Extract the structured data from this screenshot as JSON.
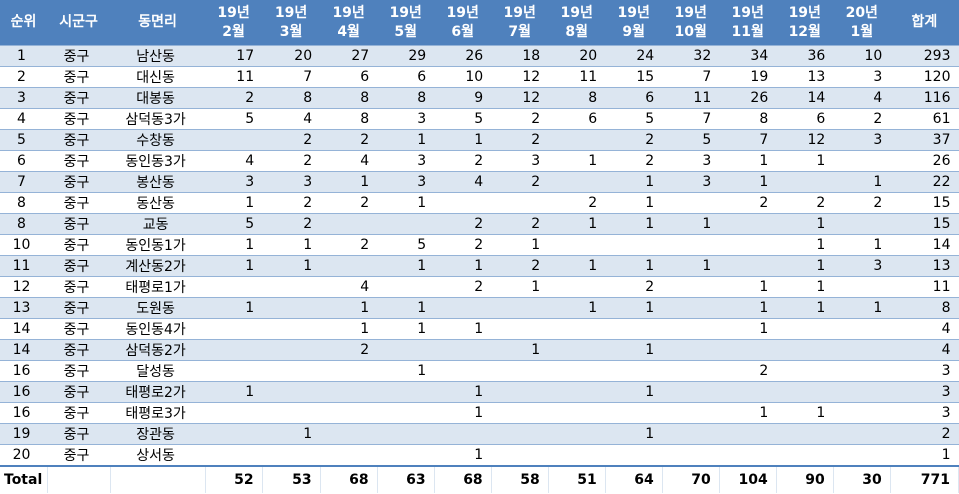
{
  "table": {
    "headers": [
      "순위",
      "시군구",
      "동면리",
      "19년\n2월",
      "19년\n3월",
      "19년\n4월",
      "19년\n5월",
      "19년\n6월",
      "19년\n7월",
      "19년\n8월",
      "19년\n9월",
      "19년\n10월",
      "19년\n11월",
      "19년\n12월",
      "20년\n1월",
      "합계"
    ],
    "rows": [
      [
        1,
        "중구",
        "남산동",
        17,
        20,
        27,
        29,
        26,
        18,
        20,
        24,
        32,
        34,
        36,
        10,
        293
      ],
      [
        2,
        "중구",
        "대신동",
        11,
        7,
        6,
        6,
        10,
        12,
        11,
        15,
        7,
        19,
        13,
        3,
        120
      ],
      [
        3,
        "중구",
        "대봉동",
        2,
        8,
        8,
        8,
        9,
        12,
        8,
        6,
        11,
        26,
        14,
        4,
        116
      ],
      [
        4,
        "중구",
        "삼덕동3가",
        5,
        4,
        8,
        3,
        5,
        2,
        6,
        5,
        7,
        8,
        6,
        2,
        61
      ],
      [
        5,
        "중구",
        "수창동",
        null,
        2,
        2,
        1,
        1,
        2,
        null,
        2,
        5,
        7,
        12,
        3,
        37
      ],
      [
        6,
        "중구",
        "동인동3가",
        4,
        2,
        4,
        3,
        2,
        3,
        1,
        2,
        3,
        1,
        1,
        null,
        26
      ],
      [
        7,
        "중구",
        "봉산동",
        3,
        3,
        1,
        3,
        4,
        2,
        null,
        1,
        3,
        1,
        null,
        1,
        22
      ],
      [
        8,
        "중구",
        "동산동",
        1,
        2,
        2,
        1,
        null,
        null,
        2,
        1,
        null,
        2,
        2,
        2,
        15
      ],
      [
        8,
        "중구",
        "교동",
        5,
        2,
        null,
        null,
        2,
        2,
        1,
        1,
        1,
        null,
        1,
        null,
        15
      ],
      [
        10,
        "중구",
        "동인동1가",
        1,
        1,
        2,
        5,
        2,
        1,
        null,
        null,
        null,
        null,
        1,
        1,
        14
      ],
      [
        11,
        "중구",
        "계산동2가",
        1,
        1,
        null,
        1,
        1,
        2,
        1,
        1,
        1,
        null,
        1,
        3,
        13
      ],
      [
        12,
        "중구",
        "태평로1가",
        null,
        null,
        4,
        null,
        2,
        1,
        null,
        2,
        null,
        1,
        1,
        null,
        11
      ],
      [
        13,
        "중구",
        "도원동",
        1,
        null,
        1,
        1,
        null,
        null,
        1,
        1,
        null,
        1,
        1,
        1,
        8
      ],
      [
        14,
        "중구",
        "동인동4가",
        null,
        null,
        1,
        1,
        1,
        null,
        null,
        null,
        null,
        1,
        null,
        null,
        4
      ],
      [
        14,
        "중구",
        "삼덕동2가",
        null,
        null,
        2,
        null,
        null,
        1,
        null,
        1,
        null,
        null,
        null,
        null,
        4
      ],
      [
        16,
        "중구",
        "달성동",
        null,
        null,
        null,
        1,
        null,
        null,
        null,
        null,
        null,
        2,
        null,
        null,
        3
      ],
      [
        16,
        "중구",
        "태평로2가",
        1,
        null,
        null,
        null,
        1,
        null,
        null,
        1,
        null,
        null,
        null,
        null,
        3
      ],
      [
        16,
        "중구",
        "태평로3가",
        null,
        null,
        null,
        null,
        1,
        null,
        null,
        null,
        null,
        1,
        1,
        null,
        3
      ],
      [
        19,
        "중구",
        "장관동",
        null,
        1,
        null,
        null,
        null,
        null,
        null,
        1,
        null,
        null,
        null,
        null,
        2
      ],
      [
        20,
        "중구",
        "상서동",
        null,
        null,
        null,
        null,
        1,
        null,
        null,
        null,
        null,
        null,
        null,
        null,
        1
      ]
    ],
    "total": [
      "Total",
      null,
      null,
      52,
      53,
      68,
      63,
      68,
      58,
      51,
      64,
      70,
      104,
      90,
      30,
      771
    ]
  }
}
